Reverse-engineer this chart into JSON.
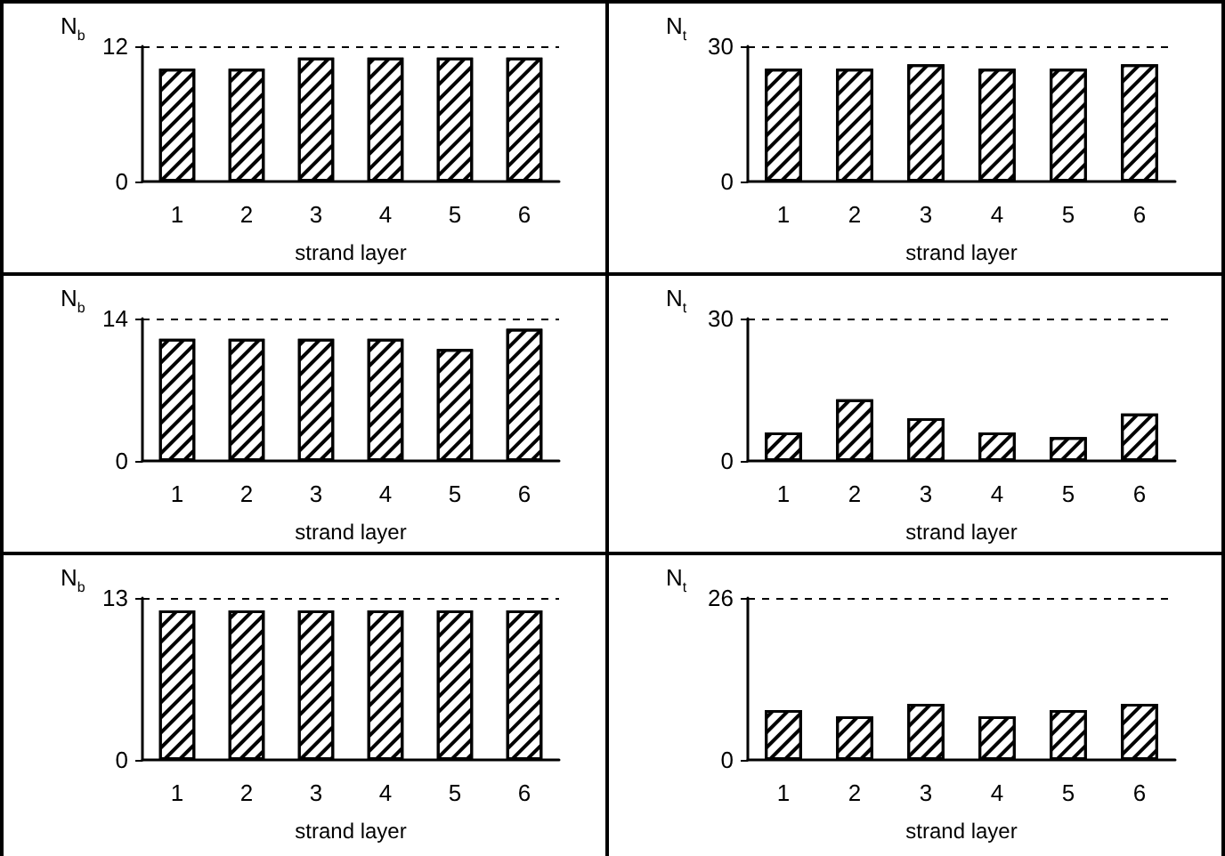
{
  "chart_data": [
    {
      "type": "bar",
      "ylabel": "N$_{b}$",
      "xlabel": "strand layer",
      "categories": [
        "1",
        "2",
        "3",
        "4",
        "5",
        "6"
      ],
      "values": [
        10,
        10,
        11,
        11,
        11,
        11
      ],
      "color": "#000000",
      "ylim": [
        0,
        12
      ],
      "yticks": [
        0,
        12
      ],
      "grid": false,
      "ref_lines": [
        {
          "axis": "y",
          "value": 12,
          "line_style": "dashed"
        }
      ]
    },
    {
      "type": "bar",
      "ylabel": "N$_{t}$",
      "xlabel": "strand layer",
      "categories": [
        "1",
        "2",
        "3",
        "4",
        "5",
        "6"
      ],
      "values": [
        25,
        25,
        26,
        25,
        25,
        26
      ],
      "color": "#000000",
      "ylim": [
        0,
        30
      ],
      "yticks": [
        0,
        30
      ],
      "grid": false,
      "ref_lines": [
        {
          "axis": "y",
          "value": 30,
          "line_style": "dashed"
        }
      ]
    },
    {
      "type": "bar",
      "ylabel": "N$_{b}$",
      "xlabel": "strand layer",
      "categories": [
        "1",
        "2",
        "3",
        "4",
        "5",
        "6"
      ],
      "values": [
        12,
        12,
        12,
        12,
        11,
        13
      ],
      "color": "#000000",
      "ylim": [
        0,
        14
      ],
      "yticks": [
        0,
        14
      ],
      "grid": false,
      "ref_lines": [
        {
          "axis": "y",
          "value": 14,
          "line_style": "dashed"
        }
      ]
    },
    {
      "type": "bar",
      "ylabel": "N$_{t}$",
      "xlabel": "strand layer",
      "categories": [
        "1",
        "2",
        "3",
        "4",
        "5",
        "6"
      ],
      "values": [
        6,
        13,
        9,
        6,
        5,
        10
      ],
      "color": "#000000",
      "ylim": [
        0,
        30
      ],
      "yticks": [
        0,
        30
      ],
      "grid": false,
      "ref_lines": [
        {
          "axis": "y",
          "value": 30,
          "line_style": "dashed"
        }
      ]
    },
    {
      "type": "bar",
      "ylabel": "N$_{b}$",
      "xlabel": "strand layer",
      "categories": [
        "1",
        "2",
        "3",
        "4",
        "5",
        "6"
      ],
      "values": [
        12,
        12,
        12,
        12,
        12,
        12
      ],
      "color": "#000000",
      "ylim": [
        0,
        13
      ],
      "yticks": [
        0,
        13
      ],
      "grid": false,
      "ref_lines": [
        {
          "axis": "y",
          "value": 13,
          "line_style": "dashed"
        }
      ]
    },
    {
      "type": "bar",
      "ylabel": "N$_{t}$",
      "xlabel": "strand layer",
      "categories": [
        "1",
        "2",
        "3",
        "4",
        "5",
        "6"
      ],
      "values": [
        8,
        7,
        9,
        7,
        8,
        9
      ],
      "color": "#000000",
      "ylim": [
        0,
        26
      ],
      "yticks": [
        0,
        26
      ],
      "grid": false,
      "ref_lines": [
        {
          "axis": "y",
          "value": 26,
          "line_style": "dashed"
        }
      ]
    }
  ]
}
